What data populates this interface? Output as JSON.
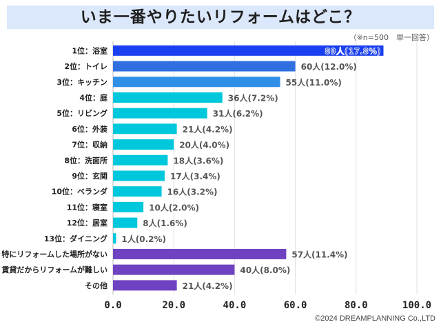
{
  "title": "いま一番やりたいリフォームはどこ？",
  "note": "（※n=500　単一回答）",
  "credit": "©2024 DREAMPLANNING Co.,LTD",
  "chart_data": {
    "type": "bar",
    "orientation": "horizontal",
    "title": "いま一番やりたいリフォームはどこ？",
    "xlabel": "",
    "ylabel": "",
    "xlim": [
      0,
      100
    ],
    "xticks": [
      0,
      20,
      40,
      60,
      80,
      100
    ],
    "xtick_labels": [
      "0.0",
      "20.0",
      "40.0",
      "60.0",
      "80.0",
      "100.0"
    ],
    "grid": true,
    "categories": [
      "1位：浴室",
      "2位：トイレ",
      "3位：キッチン",
      "4位：庭",
      "5位：リビング",
      "6位：外装",
      "7位：収納",
      "8位：洗面所",
      "9位：玄関",
      "10位：ベランダ",
      "11位：寝室",
      "12位：居室",
      "13位：ダイニング",
      "特にリフォームした場所がない",
      "賃貸だからリフォームが難しい",
      "その他"
    ],
    "values": [
      89,
      60,
      55,
      36,
      31,
      21,
      20,
      18,
      17,
      16,
      10,
      8,
      1,
      57,
      40,
      21
    ],
    "percent": [
      17.8,
      12.0,
      11.0,
      7.2,
      6.2,
      4.2,
      4.0,
      3.6,
      3.4,
      3.2,
      2.0,
      1.6,
      0.2,
      11.4,
      8.0,
      4.2
    ],
    "data_labels": [
      "89人(17.8%)",
      "60人(12.0%)",
      "55人(11.0%)",
      "36人(7.2%)",
      "31人(6.2%)",
      "21人(4.2%)",
      "20人(4.0%)",
      "18人(3.6%)",
      "17人(3.4%)",
      "16人(3.2%)",
      "10人(2.0%)",
      "8人(1.6%)",
      "1人(0.2%)",
      "57人(11.4%)",
      "40人(8.0%)",
      "21人(4.2%)"
    ],
    "colors": [
      "#1a3ff0",
      "#2f6fe0",
      "#2f8fe8",
      "#00c8dc",
      "#00c8dc",
      "#00c8dc",
      "#00c8dc",
      "#00c8dc",
      "#00c8dc",
      "#00c8dc",
      "#00c8dc",
      "#00c8dc",
      "#00c8dc",
      "#6f42c1",
      "#6f42c1",
      "#6f42c1"
    ],
    "sample_size": "n=500",
    "answer_type": "単一回答"
  }
}
